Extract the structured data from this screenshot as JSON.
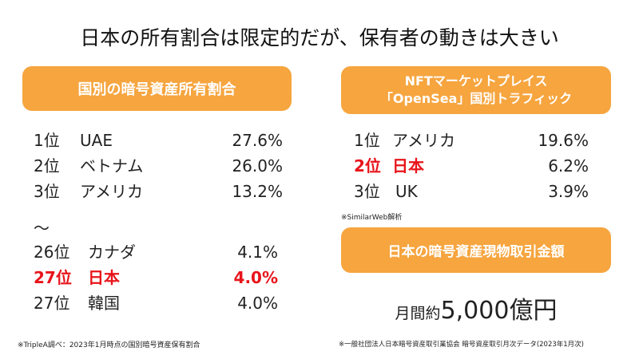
{
  "title": "日本の所有割合は限定的だが、保有者の動きは大きい",
  "left_panel": {
    "header": "国別の暗号資産所有割合",
    "top_rows": [
      {
        "rank": "1位",
        "country": "UAE",
        "value": "27.6%"
      },
      {
        "rank": "2位",
        "country": "ベトナム",
        "value": "26.0%"
      },
      {
        "rank": "3位",
        "country": "アメリカ",
        "value": "13.2%"
      }
    ],
    "separator": "～",
    "bottom_rows": [
      {
        "rank": "26位",
        "country": "カナダ",
        "value": "4.1%"
      },
      {
        "rank": "27位",
        "country": "日本",
        "value": "4.0%",
        "highlight": true
      },
      {
        "rank": "27位",
        "country": "韓国",
        "value": "4.0%"
      }
    ],
    "footnote": "※TripleA調べ：2023年1月時点の国別暗号資産保有割合"
  },
  "right_panel": {
    "header_line1": "NFTマーケットプレイス",
    "header_line2": "「OpenSea」国別トラフィック",
    "rows": [
      {
        "rank": "1位",
        "country": "アメリカ",
        "value": "19.6%"
      },
      {
        "rank": "2位",
        "country": "日本",
        "value": "6.2%",
        "highlight": true
      },
      {
        "rank": "3位",
        "country": "UK",
        "value": "3.9%"
      }
    ],
    "source_note": "※SimilarWeb解析",
    "volume_header": "日本の暗号資産現物取引金額",
    "volume_prefix": "月間約",
    "volume_value": "5,000億円",
    "footnote": "※一般社団法人日本暗号資産取引業協会 暗号資産取引月次データ(2023年1月次)"
  },
  "colors": {
    "accent": "#f6a53f",
    "highlight": "#e8141b"
  }
}
